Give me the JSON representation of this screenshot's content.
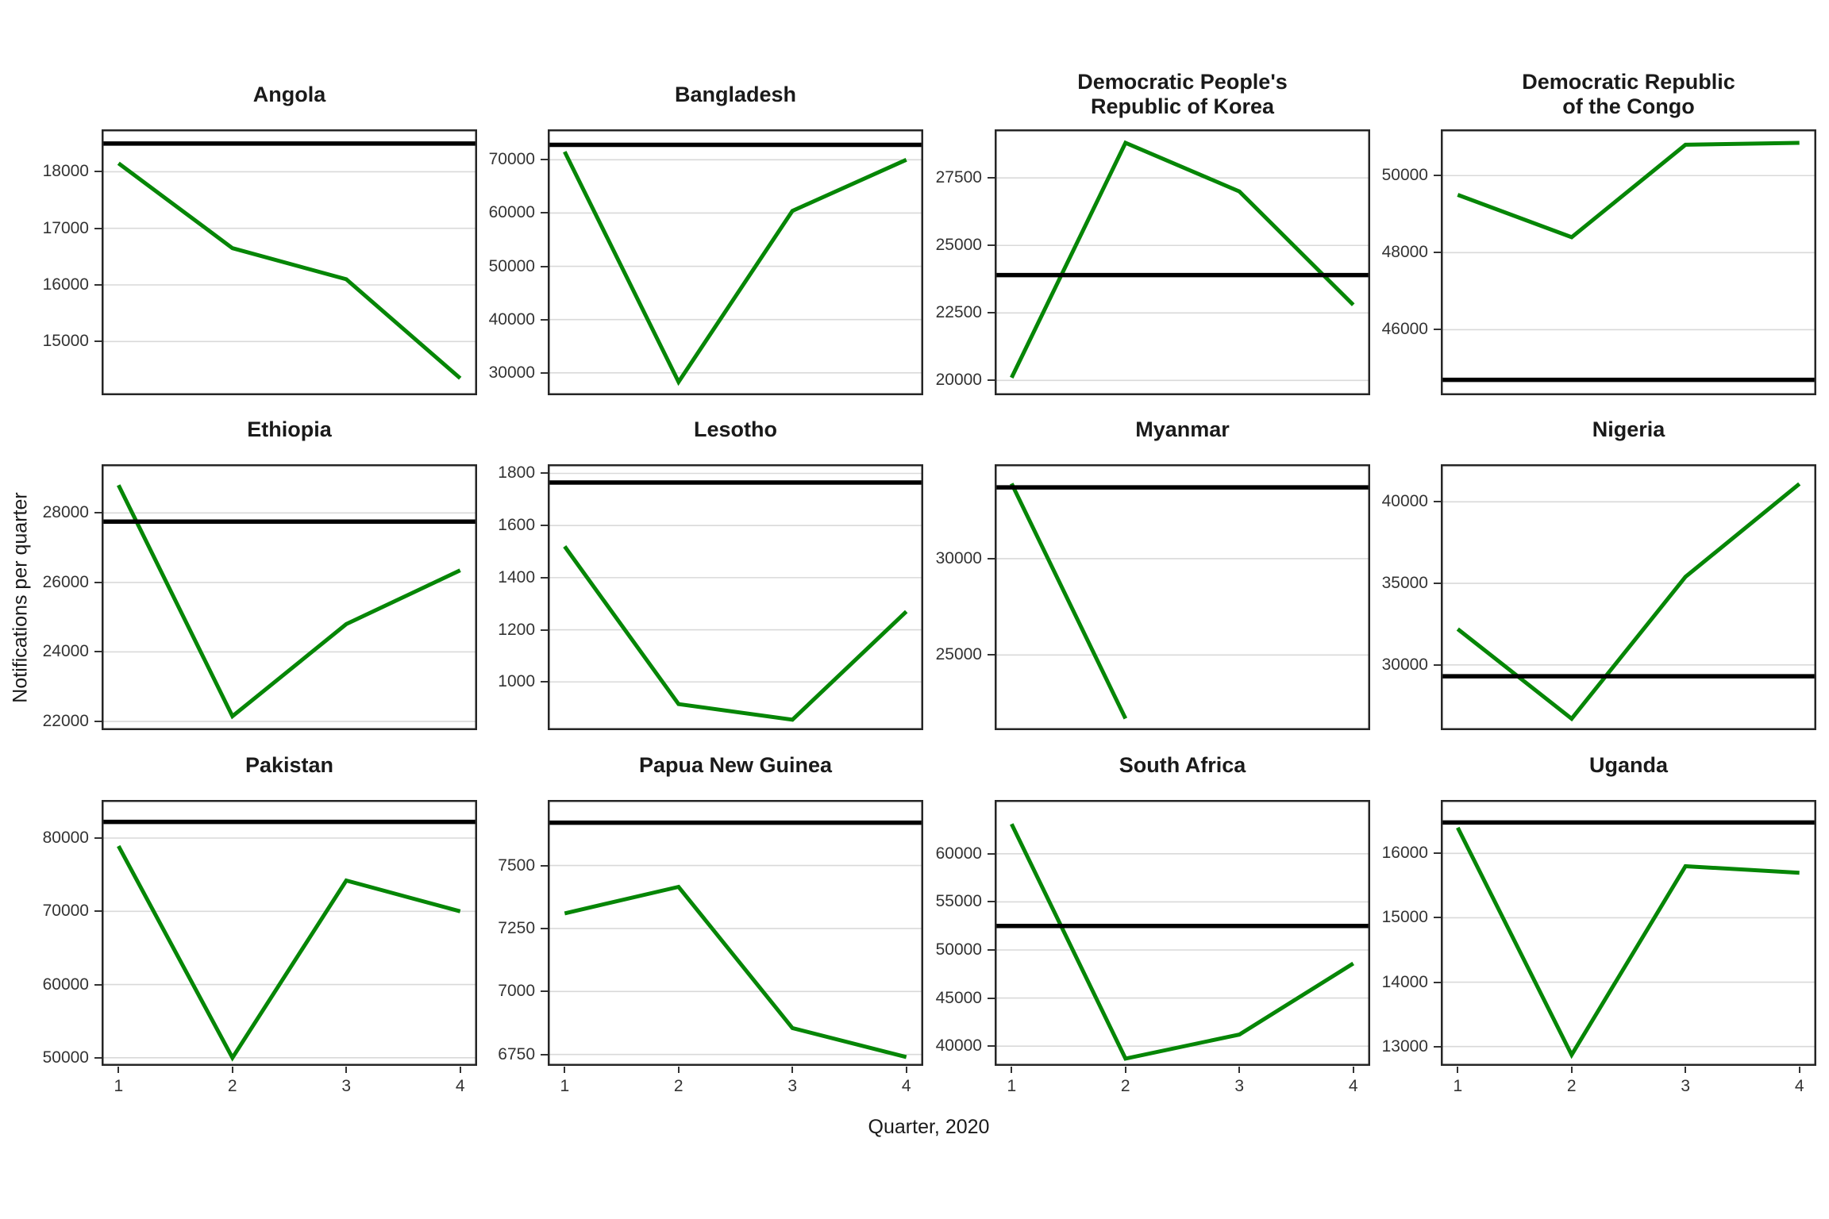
{
  "figure": {
    "background": "#ffffff",
    "line_color": "#068606",
    "ref_line_color": "#000000",
    "grid_color": "#d9d9d9",
    "border_color": "#262626",
    "title_color": "#1a1a1a",
    "tick_text_color": "#333333"
  },
  "chart_data": {
    "type": "line",
    "layout": "3x4_small_multiples",
    "x_label": "Quarter, 2020",
    "y_label": "Notifications per quarter",
    "x_ticks": [
      "1",
      "2",
      "3",
      "4"
    ],
    "grid": "horizontal_only",
    "legend_position": "none",
    "series_note": "green line = quarterly notifications 2020; black horizontal line = reference level",
    "panels": [
      {
        "title": "Angola",
        "x": [
          1,
          2,
          3,
          4
        ],
        "values": [
          18150,
          16650,
          16100,
          14350
        ],
        "ref_value": 18500,
        "y_ticks": [
          15000,
          16000,
          17000,
          18000
        ],
        "y_lim": [
          14050,
          18750
        ]
      },
      {
        "title": "Bangladesh",
        "x": [
          1,
          2,
          3,
          4
        ],
        "values": [
          71500,
          28300,
          60400,
          70000
        ],
        "ref_value": 72800,
        "y_ticks": [
          30000,
          40000,
          50000,
          60000,
          70000
        ],
        "y_lim": [
          25800,
          75700
        ]
      },
      {
        "title": "Democratic People's\nRepublic of Korea",
        "x": [
          1,
          2,
          3,
          4
        ],
        "values": [
          20100,
          28800,
          27000,
          22800
        ],
        "ref_value": 23900,
        "y_ticks": [
          20000,
          22500,
          25000,
          27500
        ],
        "y_lim": [
          19450,
          29300
        ]
      },
      {
        "title": "Democratic Republic\nof the Congo",
        "x": [
          1,
          2,
          3,
          4
        ],
        "values": [
          49500,
          48400,
          50800,
          50850
        ],
        "ref_value": 44700,
        "y_ticks": [
          46000,
          48000,
          50000
        ],
        "y_lim": [
          44300,
          51200
        ]
      },
      {
        "title": "Ethiopia",
        "x": [
          1,
          2,
          3,
          4
        ],
        "values": [
          28800,
          22150,
          24800,
          26350
        ],
        "ref_value": 27750,
        "y_ticks": [
          22000,
          24000,
          26000,
          28000
        ],
        "y_lim": [
          21750,
          29400
        ]
      },
      {
        "title": "Lesotho",
        "x": [
          1,
          2,
          3,
          4
        ],
        "values": [
          1520,
          915,
          855,
          1270
        ],
        "ref_value": 1765,
        "y_ticks": [
          1000,
          1200,
          1400,
          1600,
          1800
        ],
        "y_lim": [
          815,
          1835
        ]
      },
      {
        "title": "Myanmar",
        "x": [
          1,
          2
        ],
        "values": [
          33900,
          21700
        ],
        "ref_value": 33700,
        "y_ticks": [
          25000,
          30000
        ],
        "y_lim": [
          21100,
          34900
        ]
      },
      {
        "title": "Nigeria",
        "x": [
          1,
          2,
          3,
          4
        ],
        "values": [
          32200,
          26700,
          35400,
          41100
        ],
        "ref_value": 29300,
        "y_ticks": [
          30000,
          35000,
          40000
        ],
        "y_lim": [
          26000,
          42300
        ]
      },
      {
        "title": "Pakistan",
        "x": [
          1,
          2,
          3,
          4
        ],
        "values": [
          78900,
          50000,
          74200,
          70000
        ],
        "ref_value": 82200,
        "y_ticks": [
          50000,
          60000,
          70000,
          80000
        ],
        "y_lim": [
          48900,
          85200
        ]
      },
      {
        "title": "Papua New Guinea",
        "x": [
          1,
          2,
          3,
          4
        ],
        "values": [
          7310,
          7415,
          6855,
          6740
        ],
        "ref_value": 7670,
        "y_ticks": [
          6750,
          7000,
          7250,
          7500
        ],
        "y_lim": [
          6705,
          7760
        ]
      },
      {
        "title": "South Africa",
        "x": [
          1,
          2,
          3,
          4
        ],
        "values": [
          63100,
          38700,
          41200,
          48600
        ],
        "ref_value": 52500,
        "y_ticks": [
          40000,
          45000,
          50000,
          55000,
          60000
        ],
        "y_lim": [
          37950,
          65600
        ]
      },
      {
        "title": "Uganda",
        "x": [
          1,
          2,
          3,
          4
        ],
        "values": [
          16400,
          12870,
          15800,
          15700
        ],
        "ref_value": 16480,
        "y_ticks": [
          13000,
          14000,
          15000,
          16000
        ],
        "y_lim": [
          12700,
          16830
        ]
      }
    ]
  }
}
